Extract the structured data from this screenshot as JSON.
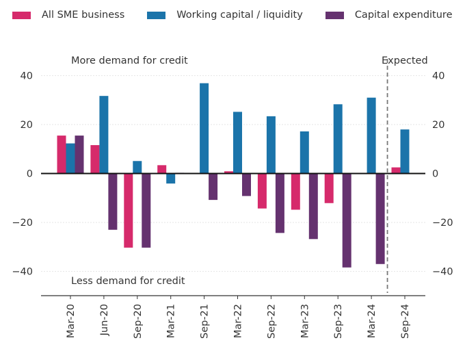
{
  "chart_data": {
    "type": "bar",
    "title": "",
    "xlabel": "",
    "ylabel": "",
    "ylim": [
      -50,
      47
    ],
    "yticks": [
      -40,
      -20,
      0,
      20,
      40
    ],
    "ytick_labels": [
      "−40",
      "−20",
      "0",
      "20",
      "40"
    ],
    "grid": true,
    "legend_position": "top",
    "categories": [
      "Mar-20",
      "Jun-20",
      "Sep-20",
      "Mar-21",
      "Sep-21",
      "Mar-22",
      "Sep-22",
      "Mar-23",
      "Sep-23",
      "Mar-24",
      "Sep-24"
    ],
    "series": [
      {
        "name": "All SME business",
        "color": "#d62a6b",
        "values": [
          15.5,
          11.6,
          -30.3,
          3.4,
          0,
          0.9,
          -14.3,
          -14.8,
          -12.1,
          0,
          2.5
        ]
      },
      {
        "name": "Working capital / liquidity",
        "color": "#1b74aa",
        "values": [
          12.3,
          31.7,
          5.1,
          -4.1,
          36.9,
          25.2,
          23.4,
          17.2,
          28.3,
          31.0,
          18.0
        ]
      },
      {
        "name": "Capital expenditure",
        "color": "#65326f",
        "values": [
          15.5,
          -23.0,
          -30.3,
          0.3,
          -10.8,
          -9.2,
          -24.3,
          -26.8,
          -38.4,
          -37.0,
          0
        ]
      }
    ],
    "annotations": {
      "top": "More demand for credit",
      "bottom": "Less demand for credit",
      "expected": "Expected",
      "expected_after_category": "Mar-24"
    }
  }
}
